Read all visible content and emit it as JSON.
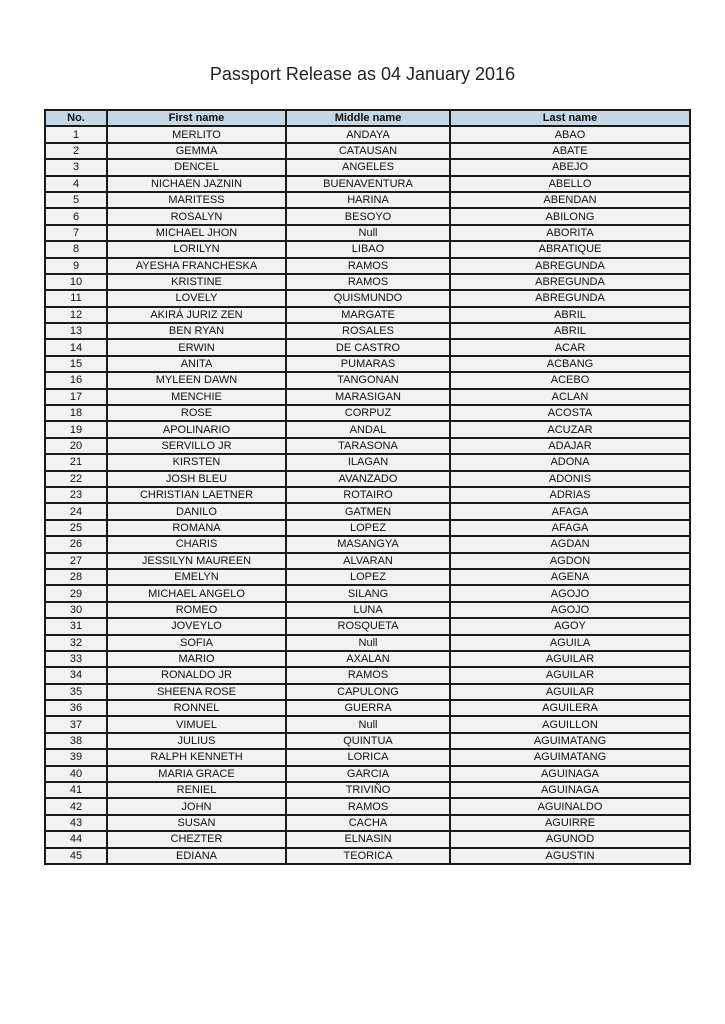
{
  "title": "Passport Release as 04 January 2016",
  "columns": [
    "No.",
    "First name",
    "Middle name",
    "Last name"
  ],
  "rows": [
    [
      "1",
      "MERLITO",
      "ANDAYA",
      "ABAO"
    ],
    [
      "2",
      "GEMMA",
      "CATAUSAN",
      "ABATE"
    ],
    [
      "3",
      "DENCEL",
      "ANGELES",
      "ABEJO"
    ],
    [
      "4",
      "NICHAEN JAZNIN",
      "BUENAVENTURA",
      "ABELLO"
    ],
    [
      "5",
      "MARITESS",
      "HARINA",
      "ABENDAN"
    ],
    [
      "6",
      "ROSALYN",
      "BESOYO",
      "ABILONG"
    ],
    [
      "7",
      "MICHAEL JHON",
      "Null",
      "ABORITA"
    ],
    [
      "8",
      "LORILYN",
      "LIBAO",
      "ABRATIQUE"
    ],
    [
      "9",
      "AYESHA FRANCHESKA",
      "RAMOS",
      "ABREGUNDA"
    ],
    [
      "10",
      "KRISTINE",
      "RAMOS",
      "ABREGUNDA"
    ],
    [
      "11",
      "LOVELY",
      "QUISMUNDO",
      "ABREGUNDA"
    ],
    [
      "12",
      "AKIRÁ JURIZ ZEN",
      "MARGATE",
      "ABRIL"
    ],
    [
      "13",
      "BEN RYAN",
      "ROSALES",
      "ABRIL"
    ],
    [
      "14",
      "ERWIN",
      "DE CASTRO",
      "ACAR"
    ],
    [
      "15",
      "ANITA",
      "PUMARAS",
      "ACBANG"
    ],
    [
      "16",
      "MYLEEN DAWN",
      "TANGONAN",
      "ACEBO"
    ],
    [
      "17",
      "MENCHIE",
      "MARASIGAN",
      "ACLAN"
    ],
    [
      "18",
      "ROSE",
      "CORPUZ",
      "ACOSTA"
    ],
    [
      "19",
      "APOLINARIO",
      "ANDAL",
      "ACUZAR"
    ],
    [
      "20",
      "SERVILLO JR",
      "TARASONA",
      "ADAJAR"
    ],
    [
      "21",
      "KIRSTEN",
      "ILAGAN",
      "ADONA"
    ],
    [
      "22",
      "JOSH BLEU",
      "AVANZADO",
      "ADONIS"
    ],
    [
      "23",
      "CHRISTIAN LAETNER",
      "ROTAIRO",
      "ADRIAS"
    ],
    [
      "24",
      "DANILO",
      "GATMEN",
      "AFAGA"
    ],
    [
      "25",
      "ROMANA",
      "LOPEZ",
      "AFAGA"
    ],
    [
      "26",
      "CHARIS",
      "MASANGYA",
      "AGDAN"
    ],
    [
      "27",
      "JESSILYN MAUREEN",
      "ALVARAN",
      "AGDON"
    ],
    [
      "28",
      "EMELYN",
      "LOPEZ",
      "AGENA"
    ],
    [
      "29",
      "MICHAEL ANGELO",
      "SILANG",
      "AGOJO"
    ],
    [
      "30",
      "ROMEO",
      "LUNA",
      "AGOJO"
    ],
    [
      "31",
      "JOVEYLO",
      "ROSQUETA",
      "AGOY"
    ],
    [
      "32",
      "SOFIA",
      "Null",
      "AGUILA"
    ],
    [
      "33",
      "MARIO",
      "AXALAN",
      "AGUILAR"
    ],
    [
      "34",
      "RONALDO JR",
      "RAMOS",
      "AGUILAR"
    ],
    [
      "35",
      "SHEENA ROSE",
      "CAPULONG",
      "AGUILAR"
    ],
    [
      "36",
      "RONNEL",
      "GUERRA",
      "AGUILERA"
    ],
    [
      "37",
      "VIMUEL",
      "Null",
      "AGUILLON"
    ],
    [
      "38",
      "JULIUS",
      "QUINTUA",
      "AGUIMATANG"
    ],
    [
      "39",
      "RALPH KENNETH",
      "LORICA",
      "AGUIMATANG"
    ],
    [
      "40",
      "MARIA GRACE",
      "GARCIA",
      "AGUINAGA"
    ],
    [
      "41",
      "RENIEL",
      "TRIVIÑO",
      "AGUINAGA"
    ],
    [
      "42",
      "JOHN",
      "RAMOS",
      "AGUINALDO"
    ],
    [
      "43",
      "SUSAN",
      "CACHA",
      "AGUIRRE"
    ],
    [
      "44",
      "CHEZTER",
      "ELNASIN",
      "AGUNOD"
    ],
    [
      "45",
      "EDIANA",
      "TEORICA",
      "AGUSTIN"
    ]
  ]
}
